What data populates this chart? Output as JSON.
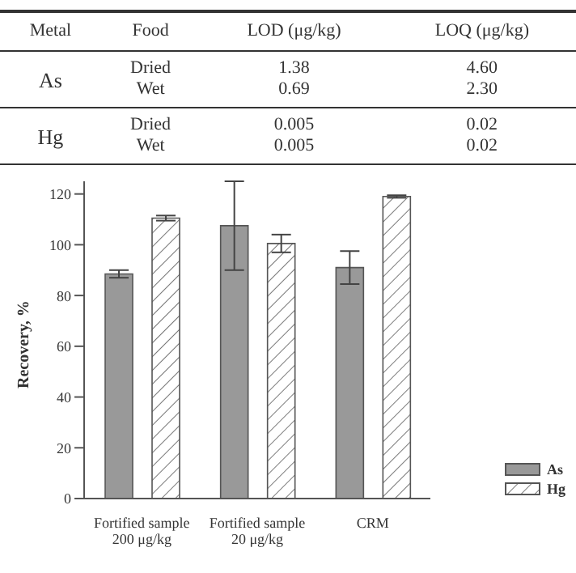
{
  "chart_data": [
    {
      "type": "other",
      "categories": [
        "Metal",
        "Food",
        "LOD (μg/kg)",
        "LOQ (μg/kg)"
      ],
      "y_categories": [
        "As",
        "Hg"
      ],
      "cell_labels": [
        [
          "Dried",
          "1.38",
          "4.60"
        ],
        [
          "Wet",
          "0.69",
          "2.30"
        ],
        [
          "Dried",
          "0.005",
          "0.02"
        ],
        [
          "Wet",
          "0.005",
          "0.02"
        ]
      ]
    },
    {
      "type": "bar",
      "ylabel": "Recovery, %",
      "categories": [
        "Fortified sample\n200 μg/kg",
        "Fortified sample\n20 μg/kg",
        "CRM"
      ],
      "series": [
        {
          "name": "As",
          "color": "#999999",
          "values": [
            88.5,
            107.5,
            91
          ],
          "errors": [
            1.5,
            17.5,
            6.5
          ]
        },
        {
          "name": "Hg",
          "color": "#555555",
          "values": [
            110.5,
            100.5,
            119
          ],
          "errors": [
            1,
            3.5,
            0.5
          ]
        }
      ],
      "ylim": [
        0,
        125
      ],
      "yticks": [
        0,
        20,
        40,
        60,
        80,
        100,
        120
      ],
      "legend": "bottom right"
    }
  ]
}
